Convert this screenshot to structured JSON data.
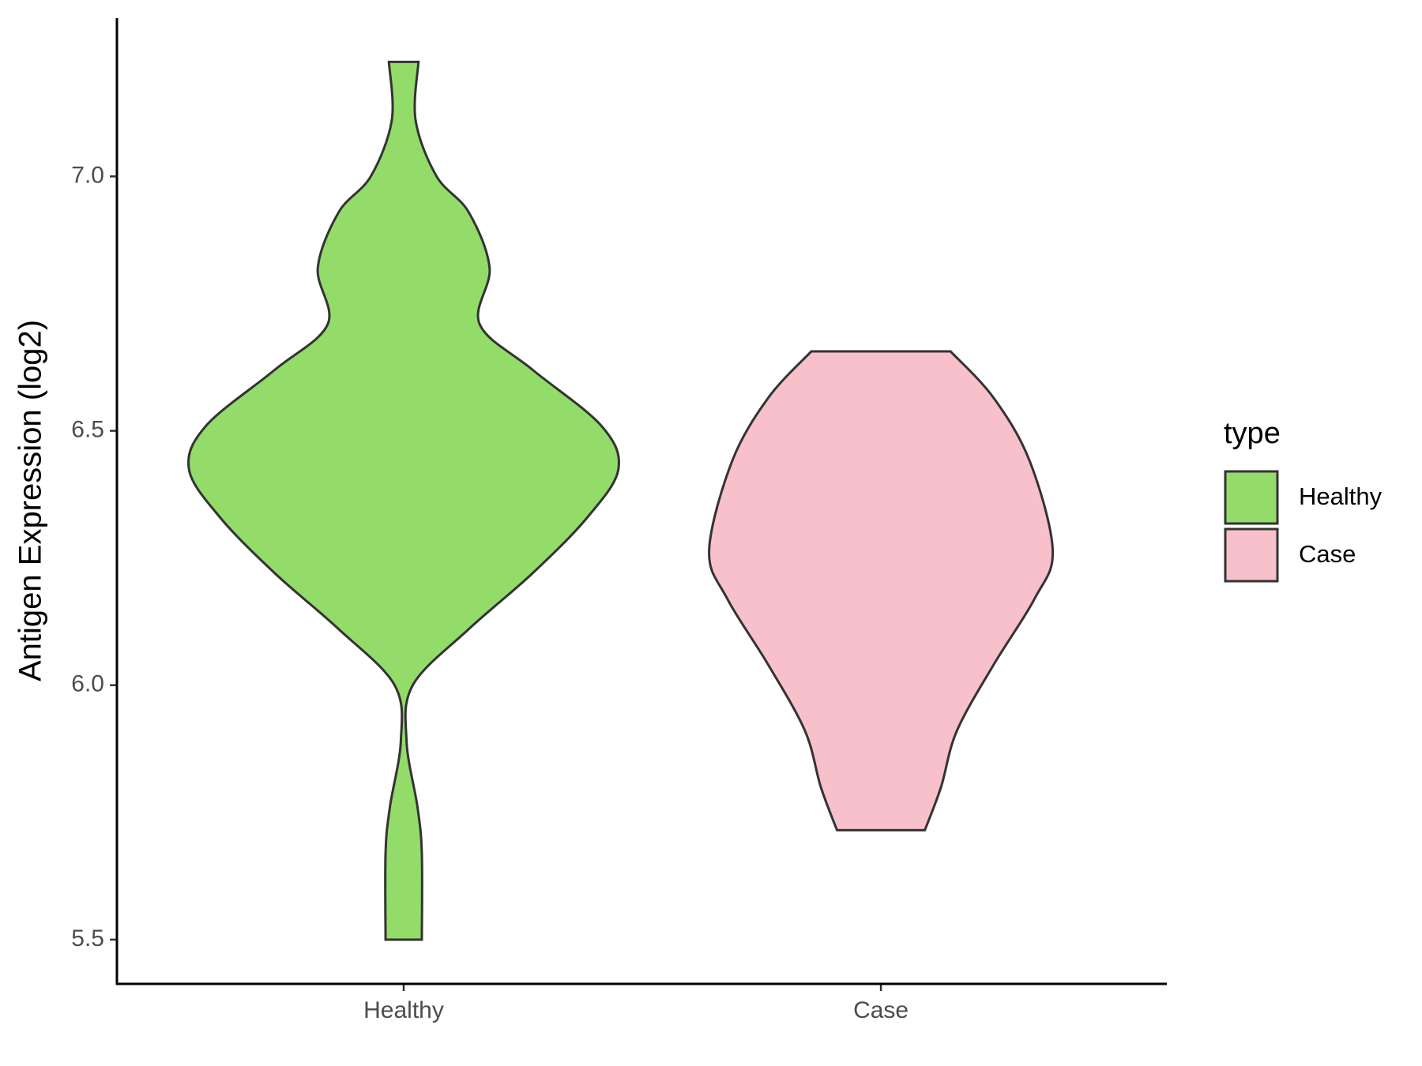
{
  "chart_data": {
    "type": "violin",
    "y_label": "Antigen Expression (log2)",
    "categories": [
      "Healthy",
      "Case"
    ],
    "legend_title": "type",
    "ylim": [
      5.413,
      7.311
    ],
    "yticks": [
      {
        "value": 5.5,
        "label": "5.5"
      },
      {
        "value": 6.0,
        "label": "6.0"
      },
      {
        "value": 6.5,
        "label": "6.5"
      },
      {
        "value": 7.0,
        "label": "7.0"
      }
    ],
    "legend_position": "right",
    "series": [
      {
        "name": "Healthy",
        "color": "#93dc6a",
        "y": [
          5.5,
          5.67,
          5.76,
          5.89,
          6.0,
          6.11,
          6.22,
          6.33,
          6.425,
          6.51,
          6.62,
          6.71,
          6.82,
          6.93,
          7.0,
          7.11,
          7.225
        ],
        "density": [
          0.038,
          0.038,
          0.029,
          0.006,
          0.019,
          0.136,
          0.27,
          0.385,
          0.45,
          0.414,
          0.27,
          0.159,
          0.18,
          0.136,
          0.069,
          0.025,
          0.031
        ]
      },
      {
        "name": "Case",
        "color": "#f7c0cb",
        "y": [
          5.715,
          5.8,
          5.91,
          6.04,
          6.17,
          6.265,
          6.44,
          6.565,
          6.656
        ],
        "density": [
          0.092,
          0.126,
          0.159,
          0.236,
          0.322,
          0.36,
          0.312,
          0.236,
          0.146
        ]
      }
    ]
  }
}
